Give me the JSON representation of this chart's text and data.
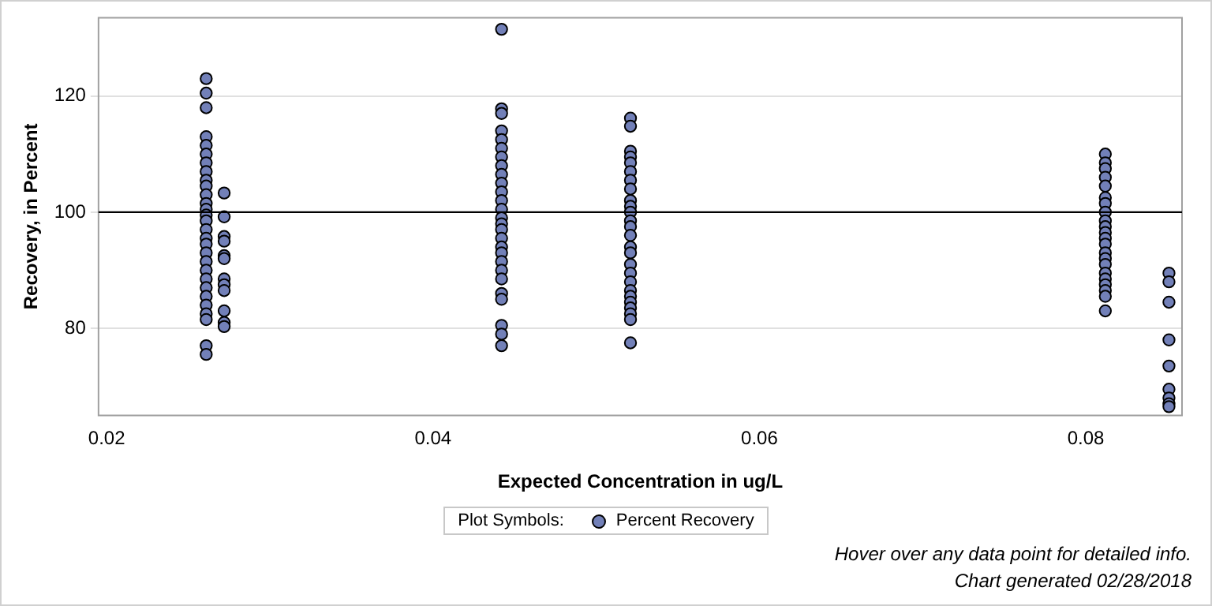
{
  "chart_data": {
    "type": "scatter",
    "xlabel": "Expected Concentration in ug/L",
    "ylabel": "Recovery, in Percent",
    "xlim": [
      0.0195,
      0.0859
    ],
    "xticks": [
      0.02,
      0.04,
      0.06,
      0.08
    ],
    "ylim": [
      65,
      133.5
    ],
    "yticks": [
      80,
      100,
      120
    ],
    "grid": "y",
    "marker": "circle",
    "legend": "bottom",
    "legend_title": "Plot Symbols:",
    "ref_lines": [
      {
        "axis": "y",
        "value": 100,
        "color": "#000000"
      }
    ],
    "annotations": [
      "Hover over any data point for detailed info.",
      "Chart generated 02/28/2018"
    ],
    "series": [
      {
        "name": "Percent Recovery",
        "color": "#7280b8",
        "x": [
          0.0261,
          0.0261,
          0.0261,
          0.0261,
          0.0261,
          0.0261,
          0.0261,
          0.0261,
          0.0261,
          0.0261,
          0.0261,
          0.0261,
          0.0261,
          0.0261,
          0.0261,
          0.0261,
          0.0261,
          0.0261,
          0.0261,
          0.0261,
          0.0261,
          0.0261,
          0.0261,
          0.0261,
          0.0261,
          0.0261,
          0.0261,
          0.0261,
          0.0261,
          0.0272,
          0.0272,
          0.0272,
          0.0272,
          0.0272,
          0.0272,
          0.0272,
          0.0272,
          0.0272,
          0.0272,
          0.0272,
          0.0272,
          0.0442,
          0.0442,
          0.0442,
          0.0442,
          0.0442,
          0.0442,
          0.0442,
          0.0442,
          0.0442,
          0.0442,
          0.0442,
          0.0442,
          0.0442,
          0.0442,
          0.0442,
          0.0442,
          0.0442,
          0.0442,
          0.0442,
          0.0442,
          0.0442,
          0.0442,
          0.0442,
          0.0442,
          0.0442,
          0.0442,
          0.0442,
          0.0521,
          0.0521,
          0.0521,
          0.0521,
          0.0521,
          0.0521,
          0.0521,
          0.0521,
          0.0521,
          0.0521,
          0.0521,
          0.0521,
          0.0521,
          0.0521,
          0.0521,
          0.0521,
          0.0521,
          0.0521,
          0.0521,
          0.0521,
          0.0521,
          0.0521,
          0.0521,
          0.0521,
          0.0521,
          0.0521,
          0.0812,
          0.0812,
          0.0812,
          0.0812,
          0.0812,
          0.0812,
          0.0812,
          0.0812,
          0.0812,
          0.0812,
          0.0812,
          0.0812,
          0.0812,
          0.0812,
          0.0812,
          0.0812,
          0.0812,
          0.0812,
          0.0812,
          0.0812,
          0.0812,
          0.0812,
          0.0851,
          0.0851,
          0.0851,
          0.0851,
          0.0851,
          0.0851,
          0.0851,
          0.0851,
          0.0851
        ],
        "values": [
          123,
          120.5,
          118,
          113,
          111.5,
          110,
          108.5,
          107,
          105.5,
          104.5,
          103,
          101.5,
          100.5,
          99.5,
          98.5,
          97,
          95.5,
          94.5,
          93,
          91.5,
          90,
          88.5,
          87,
          85.5,
          84,
          82.5,
          81.5,
          77,
          75.5,
          103.3,
          99.2,
          95.8,
          95,
          92.5,
          92,
          88.5,
          87.5,
          86.5,
          83,
          81,
          80.3,
          131.5,
          117.8,
          117,
          114,
          112.5,
          111,
          109.5,
          108,
          106.5,
          105,
          103.5,
          102,
          100.5,
          99,
          98,
          97,
          95.5,
          94,
          93,
          91.5,
          90,
          88.5,
          86,
          85,
          80.5,
          79,
          77,
          116.2,
          114.8,
          110.5,
          109.5,
          108.5,
          107,
          105.5,
          104,
          102,
          101,
          100,
          98.5,
          97.5,
          96,
          94,
          93,
          91,
          89.5,
          88,
          86.5,
          85.5,
          84.5,
          83.5,
          82.5,
          81.5,
          77.5,
          110,
          108.5,
          107.5,
          106,
          104.5,
          102.5,
          101.5,
          100,
          98.5,
          97.5,
          96.5,
          95.5,
          94.5,
          93,
          92,
          91,
          89.5,
          88.5,
          87.5,
          86.5,
          85.5,
          83,
          89.5,
          88,
          84.5,
          78,
          73.5,
          69.5,
          68,
          67,
          66.5
        ]
      }
    ]
  }
}
